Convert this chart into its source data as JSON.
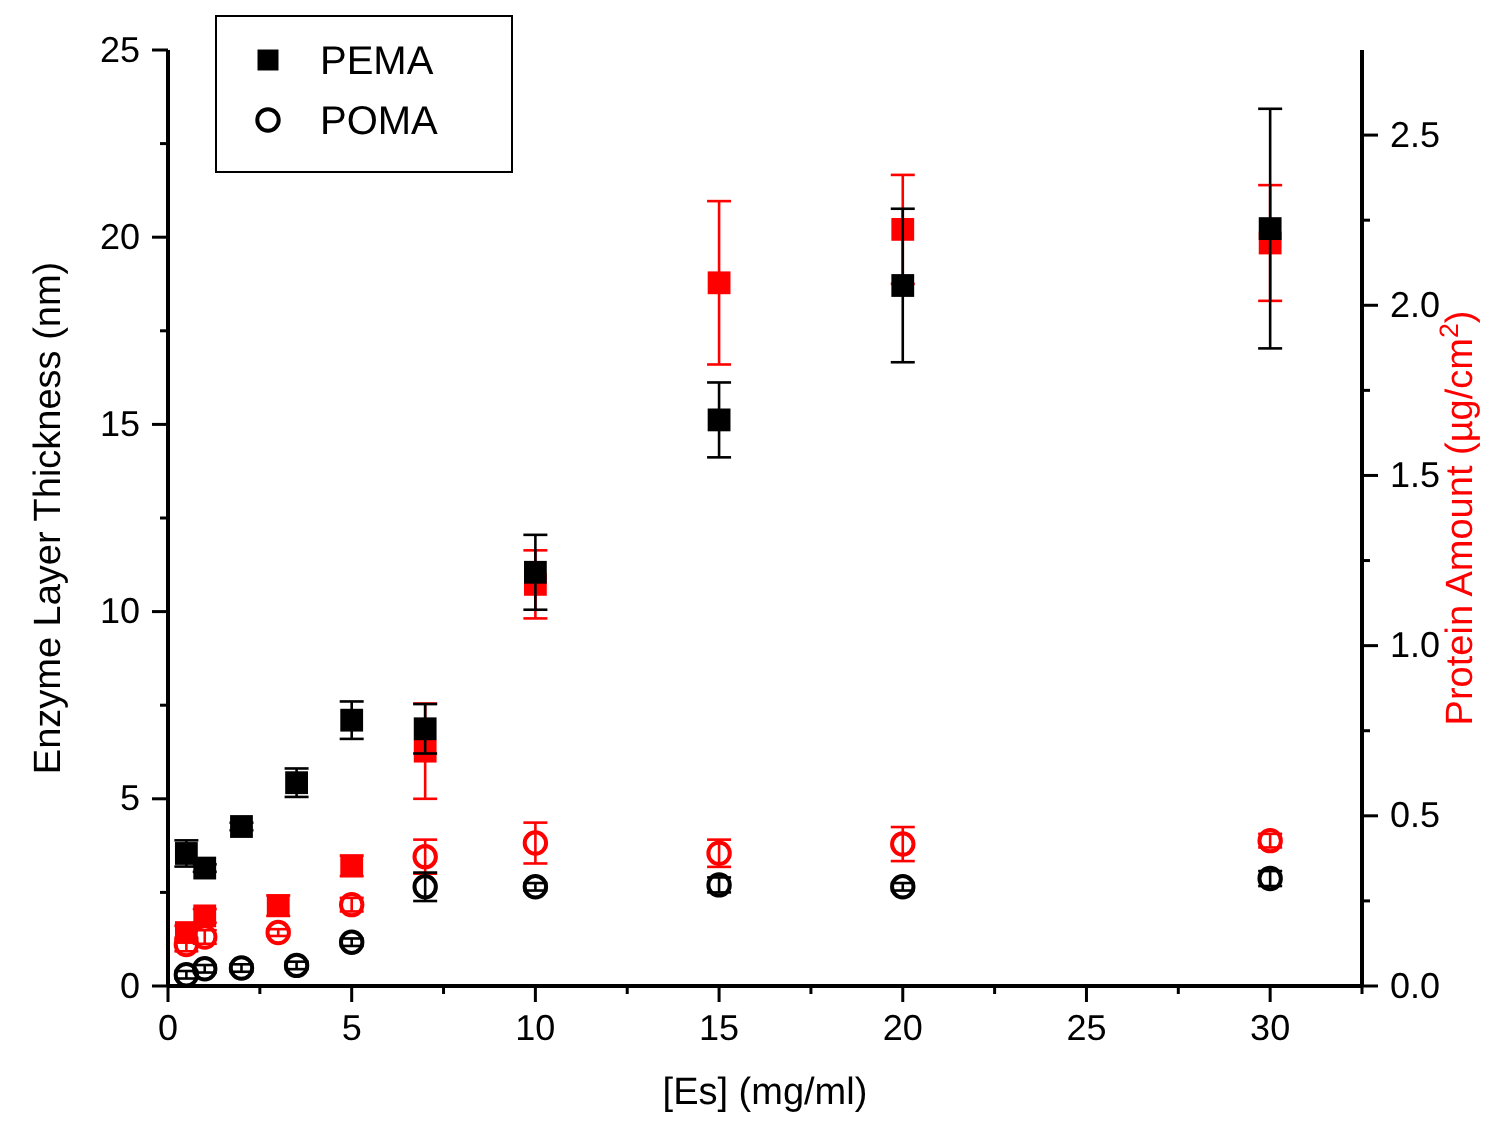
{
  "chart_data": {
    "type": "scatter",
    "xlabel": "[Es] (mg/ml)",
    "ylabel": "Enzyme Layer Thickness (nm)",
    "y2label": "Protein Amount (µg/cm$^{2}$)",
    "x": [
      0.5,
      1,
      2,
      3.5,
      5,
      7,
      10,
      15,
      20,
      30
    ],
    "series": [
      {
        "name": "PEMA",
        "color": "#000000",
        "marker": "square",
        "values": [
          3.54,
          3.15,
          4.26,
          5.43,
          7.1,
          6.87,
          11.05,
          15.12,
          18.71,
          20.23
        ],
        "errors": [
          0.35,
          0.1,
          0.1,
          0.38,
          0.5,
          0.66,
          1.0,
          1.0,
          2.05,
          3.2
        ]
      },
      {
        "name": "POMA",
        "color": "#000000",
        "marker": "circle",
        "values": [
          0.3,
          0.46,
          0.48,
          0.55,
          1.17,
          2.65,
          2.65,
          2.7,
          2.65,
          2.87
        ],
        "errors": [
          0.1,
          0.1,
          0.1,
          0.1,
          0.1,
          0.38,
          0.1,
          0.2,
          0.1,
          0.2
        ]
      },
      {
        "color": "#ff0000",
        "marker": "square",
        "axis": "y2",
        "x": [
          0.5,
          1,
          3,
          5,
          7,
          10,
          15,
          20,
          30
        ],
        "values": [
          0.157,
          0.206,
          0.236,
          0.353,
          0.69,
          1.18,
          2.066,
          2.223,
          2.183
        ],
        "errors": [
          0.02,
          0.02,
          0.03,
          0.03,
          0.14,
          0.1,
          0.24,
          0.16,
          0.17
        ]
      },
      {
        "color": "#ff0000",
        "marker": "circle",
        "axis": "y2",
        "x": [
          0.5,
          1,
          3,
          5,
          7,
          10,
          15,
          20,
          30
        ],
        "values": [
          0.122,
          0.144,
          0.157,
          0.239,
          0.38,
          0.42,
          0.39,
          0.417,
          0.427
        ],
        "errors": [
          0.02,
          0.02,
          0.01,
          0.02,
          0.05,
          0.06,
          0.04,
          0.05,
          0.02
        ]
      }
    ],
    "xlim": [
      0,
      32.5
    ],
    "xticks": [
      0,
      {
        "value": 2.5,
        "label": null
      },
      5,
      {
        "value": 7.5,
        "label": null
      },
      10,
      {
        "value": 12.5,
        "label": null
      },
      15,
      {
        "value": 17.5,
        "label": null
      },
      20,
      {
        "value": 22.5,
        "label": null
      },
      25,
      {
        "value": 27.5,
        "label": null
      },
      30,
      {
        "value": 32.5,
        "label": null
      }
    ],
    "ylim": [
      0,
      25
    ],
    "yticks": [
      0,
      {
        "value": 2.5,
        "label": null
      },
      5,
      {
        "value": 7.5,
        "label": null
      },
      10,
      {
        "value": 12.5,
        "label": null
      },
      15,
      {
        "value": 17.5,
        "label": null
      },
      20,
      {
        "value": 22.5,
        "label": null
      },
      25
    ],
    "y2lim": [
      0,
      2.75
    ],
    "y2ticks": [
      {
        "value": 0,
        "label": "0.0"
      },
      {
        "value": 0.25,
        "label": null
      },
      {
        "value": 0.5,
        "label": "0.5"
      },
      {
        "value": 0.75,
        "label": null
      },
      {
        "value": 1,
        "label": "1.0"
      },
      {
        "value": 1.25,
        "label": null
      },
      {
        "value": 1.5,
        "label": "1.5"
      },
      {
        "value": 1.75,
        "label": null
      },
      {
        "value": 2,
        "label": "2.0"
      },
      {
        "value": 2.25,
        "label": null
      },
      {
        "value": 2.5,
        "label": "2.5"
      }
    ],
    "grid": false,
    "legend": "top left"
  }
}
